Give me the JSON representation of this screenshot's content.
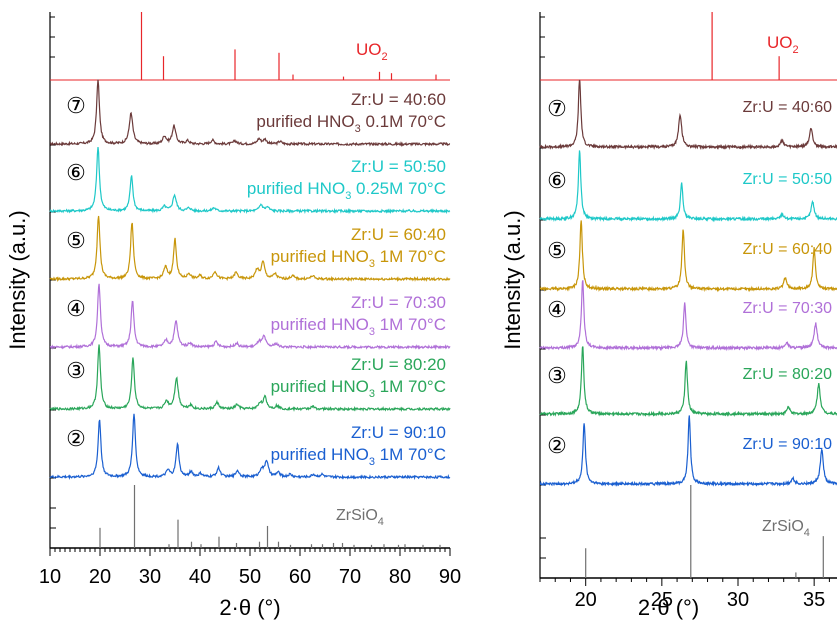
{
  "colors": {
    "uo2": "#e8262a",
    "zrsio4": "#707070",
    "s7": "#6b3a3a",
    "s6": "#1ec8c8",
    "s5": "#c8960a",
    "s4": "#b070d8",
    "s3": "#2aa65a",
    "s2": "#1a5fd0",
    "axis": "#000000"
  },
  "chart_data": [
    {
      "type": "line",
      "xlabel": "2·θ (°)",
      "ylabel": "Intensity (a.u.)",
      "xlim": [
        10,
        90
      ],
      "xticks": [
        "10",
        "20",
        "30",
        "40",
        "50",
        "60",
        "70",
        "80",
        "90"
      ],
      "reference_top": {
        "name": "UO2",
        "label": "UO",
        "label_sub": "2",
        "peaks": [
          {
            "x": 28.3,
            "h": 1.0
          },
          {
            "x": 32.7,
            "h": 0.35
          },
          {
            "x": 47.0,
            "h": 0.45
          },
          {
            "x": 55.8,
            "h": 0.4
          },
          {
            "x": 58.6,
            "h": 0.08
          },
          {
            "x": 68.7,
            "h": 0.05
          },
          {
            "x": 75.9,
            "h": 0.12
          },
          {
            "x": 78.3,
            "h": 0.1
          },
          {
            "x": 87.2,
            "h": 0.08
          }
        ]
      },
      "reference_bottom": {
        "name": "ZrSiO4",
        "label": "ZrSiO",
        "label_sub": "4",
        "peaks": [
          {
            "x": 20.0,
            "h": 0.32
          },
          {
            "x": 26.9,
            "h": 1.0
          },
          {
            "x": 33.8,
            "h": 0.06
          },
          {
            "x": 35.6,
            "h": 0.45
          },
          {
            "x": 38.3,
            "h": 0.1
          },
          {
            "x": 40.2,
            "h": 0.06
          },
          {
            "x": 43.8,
            "h": 0.18
          },
          {
            "x": 47.3,
            "h": 0.08
          },
          {
            "x": 51.9,
            "h": 0.1
          },
          {
            "x": 53.5,
            "h": 0.35
          },
          {
            "x": 55.7,
            "h": 0.1
          },
          {
            "x": 58.1,
            "h": 0.05
          },
          {
            "x": 62.3,
            "h": 0.06
          },
          {
            "x": 64.5,
            "h": 0.06
          },
          {
            "x": 66.7,
            "h": 0.08
          },
          {
            "x": 68.5,
            "h": 0.08
          },
          {
            "x": 70.8,
            "h": 0.05
          },
          {
            "x": 74.3,
            "h": 0.05
          },
          {
            "x": 76.8,
            "h": 0.06
          },
          {
            "x": 79.7,
            "h": 0.05
          },
          {
            "x": 81.0,
            "h": 0.06
          },
          {
            "x": 84.6,
            "h": 0.05
          },
          {
            "x": 88.0,
            "h": 0.05
          }
        ]
      },
      "series": [
        {
          "id": "7",
          "marker": "⑦",
          "color_key": "s7",
          "line1": "Zr:U = 40:60",
          "line2_pre": "purified HNO",
          "line2_sub": "3",
          "line2_post": " 0.1M 70°C",
          "peaks": [
            {
              "x": 19.6,
              "h": 1.0
            },
            {
              "x": 26.2,
              "h": 0.48
            },
            {
              "x": 32.9,
              "h": 0.12
            },
            {
              "x": 34.8,
              "h": 0.28
            },
            {
              "x": 37.5,
              "h": 0.05
            },
            {
              "x": 42.5,
              "h": 0.06
            },
            {
              "x": 47.0,
              "h": 0.05
            },
            {
              "x": 51.8,
              "h": 0.08
            },
            {
              "x": 53.0,
              "h": 0.07
            },
            {
              "x": 56.0,
              "h": 0.04
            }
          ]
        },
        {
          "id": "6",
          "marker": "⑥",
          "color_key": "s6",
          "line1": "Zr:U = 50:50",
          "line2_pre": "purified HNO",
          "line2_sub": "3",
          "line2_post": " 0.25M 70°C",
          "peaks": [
            {
              "x": 19.6,
              "h": 1.0
            },
            {
              "x": 26.3,
              "h": 0.55
            },
            {
              "x": 32.9,
              "h": 0.07
            },
            {
              "x": 34.9,
              "h": 0.25
            },
            {
              "x": 37.8,
              "h": 0.05
            },
            {
              "x": 42.8,
              "h": 0.05
            },
            {
              "x": 52.2,
              "h": 0.1
            },
            {
              "x": 53.5,
              "h": 0.06
            }
          ]
        },
        {
          "id": "5",
          "marker": "⑤",
          "color_key": "s5",
          "line1": "Zr:U = 60:40",
          "line2_pre": "purified HNO",
          "line2_sub": "3",
          "line2_post": " 1M 70°C",
          "peaks": [
            {
              "x": 19.7,
              "h": 1.0
            },
            {
              "x": 26.4,
              "h": 0.88
            },
            {
              "x": 33.1,
              "h": 0.18
            },
            {
              "x": 35.0,
              "h": 0.62
            },
            {
              "x": 37.8,
              "h": 0.08
            },
            {
              "x": 40.0,
              "h": 0.05
            },
            {
              "x": 43.0,
              "h": 0.12
            },
            {
              "x": 47.2,
              "h": 0.1
            },
            {
              "x": 51.4,
              "h": 0.14
            },
            {
              "x": 52.6,
              "h": 0.26
            },
            {
              "x": 55.0,
              "h": 0.08
            },
            {
              "x": 58.5,
              "h": 0.05
            },
            {
              "x": 62.5,
              "h": 0.05
            }
          ]
        },
        {
          "id": "4",
          "marker": "④",
          "color_key": "s4",
          "line1": "Zr:U = 70:30",
          "line2_pre": "purified HNO",
          "line2_sub": "3",
          "line2_post": " 1M 70°C",
          "peaks": [
            {
              "x": 19.8,
              "h": 1.0
            },
            {
              "x": 26.5,
              "h": 0.72
            },
            {
              "x": 33.2,
              "h": 0.1
            },
            {
              "x": 35.2,
              "h": 0.4
            },
            {
              "x": 38.0,
              "h": 0.06
            },
            {
              "x": 43.2,
              "h": 0.08
            },
            {
              "x": 47.3,
              "h": 0.06
            },
            {
              "x": 51.8,
              "h": 0.08
            },
            {
              "x": 52.8,
              "h": 0.16
            },
            {
              "x": 55.2,
              "h": 0.05
            }
          ]
        },
        {
          "id": "3",
          "marker": "③",
          "color_key": "s3",
          "line1": "Zr:U = 80:20",
          "line2_pre": "purified HNO",
          "line2_sub": "3",
          "line2_post": " 1M 70°C",
          "peaks": [
            {
              "x": 19.8,
              "h": 1.0
            },
            {
              "x": 26.6,
              "h": 0.8
            },
            {
              "x": 33.3,
              "h": 0.12
            },
            {
              "x": 35.3,
              "h": 0.48
            },
            {
              "x": 38.1,
              "h": 0.06
            },
            {
              "x": 43.4,
              "h": 0.1
            },
            {
              "x": 47.4,
              "h": 0.07
            },
            {
              "x": 52.0,
              "h": 0.09
            },
            {
              "x": 53.0,
              "h": 0.18
            },
            {
              "x": 55.4,
              "h": 0.05
            },
            {
              "x": 62.5,
              "h": 0.04
            }
          ]
        },
        {
          "id": "2",
          "marker": "②",
          "color_key": "s2",
          "line1": "Zr:U = 90:10",
          "line2_pre": "purified HNO",
          "line2_sub": "3",
          "line2_post": " 1M 70°C",
          "peaks": [
            {
              "x": 19.9,
              "h": 0.9
            },
            {
              "x": 26.8,
              "h": 1.0
            },
            {
              "x": 33.6,
              "h": 0.1
            },
            {
              "x": 35.5,
              "h": 0.52
            },
            {
              "x": 38.2,
              "h": 0.08
            },
            {
              "x": 40.1,
              "h": 0.05
            },
            {
              "x": 43.7,
              "h": 0.14
            },
            {
              "x": 47.5,
              "h": 0.1
            },
            {
              "x": 52.3,
              "h": 0.12
            },
            {
              "x": 53.3,
              "h": 0.25
            },
            {
              "x": 55.6,
              "h": 0.07
            },
            {
              "x": 58.0,
              "h": 0.04
            },
            {
              "x": 62.7,
              "h": 0.04
            },
            {
              "x": 64.4,
              "h": 0.04
            }
          ]
        }
      ]
    },
    {
      "type": "line",
      "xlabel": "2·θ (°)",
      "ylabel": "Intensity (a.u.)",
      "xlim": [
        17,
        36.5
      ],
      "xticks": [
        "20",
        "25",
        "30",
        "35"
      ],
      "reference_top": {
        "name": "UO2",
        "label": "UO",
        "label_sub": "2",
        "peaks": [
          {
            "x": 28.3,
            "h": 1.0
          },
          {
            "x": 32.7,
            "h": 0.35
          }
        ]
      },
      "reference_bottom": {
        "name": "ZrSiO4",
        "label": "ZrSiO",
        "label_sub": "4",
        "peaks": [
          {
            "x": 20.0,
            "h": 0.32
          },
          {
            "x": 26.9,
            "h": 1.0
          },
          {
            "x": 33.8,
            "h": 0.06
          },
          {
            "x": 35.6,
            "h": 0.45
          }
        ]
      },
      "series": [
        {
          "id": "7",
          "marker": "⑦",
          "color_key": "s7",
          "line1": "Zr:U = 40:60",
          "peaks": [
            {
              "x": 19.6,
              "h": 1.0
            },
            {
              "x": 26.2,
              "h": 0.48
            },
            {
              "x": 32.9,
              "h": 0.1
            },
            {
              "x": 34.8,
              "h": 0.28
            }
          ]
        },
        {
          "id": "6",
          "marker": "⑥",
          "color_key": "s6",
          "line1": "Zr:U = 50:50",
          "peaks": [
            {
              "x": 19.6,
              "h": 1.0
            },
            {
              "x": 26.3,
              "h": 0.52
            },
            {
              "x": 32.9,
              "h": 0.07
            },
            {
              "x": 34.9,
              "h": 0.25
            }
          ]
        },
        {
          "id": "5",
          "marker": "⑤",
          "color_key": "s5",
          "line1": "Zr:U = 60:40",
          "peaks": [
            {
              "x": 19.7,
              "h": 1.0
            },
            {
              "x": 26.4,
              "h": 0.88
            },
            {
              "x": 33.1,
              "h": 0.16
            },
            {
              "x": 35.0,
              "h": 0.6
            }
          ]
        },
        {
          "id": "4",
          "marker": "④",
          "color_key": "s4",
          "line1": "Zr:U = 70:30",
          "peaks": [
            {
              "x": 19.8,
              "h": 1.0
            },
            {
              "x": 26.5,
              "h": 0.66
            },
            {
              "x": 33.2,
              "h": 0.08
            },
            {
              "x": 35.1,
              "h": 0.36
            }
          ]
        },
        {
          "id": "3",
          "marker": "③",
          "color_key": "s3",
          "line1": "Zr:U = 80:20",
          "peaks": [
            {
              "x": 19.8,
              "h": 1.0
            },
            {
              "x": 26.6,
              "h": 0.78
            },
            {
              "x": 33.3,
              "h": 0.1
            },
            {
              "x": 35.3,
              "h": 0.44
            }
          ]
        },
        {
          "id": "2",
          "marker": "②",
          "color_key": "s2",
          "line1": "Zr:U = 90:10",
          "peaks": [
            {
              "x": 19.9,
              "h": 0.9
            },
            {
              "x": 26.8,
              "h": 1.0
            },
            {
              "x": 33.6,
              "h": 0.08
            },
            {
              "x": 35.5,
              "h": 0.5
            }
          ]
        }
      ]
    }
  ]
}
